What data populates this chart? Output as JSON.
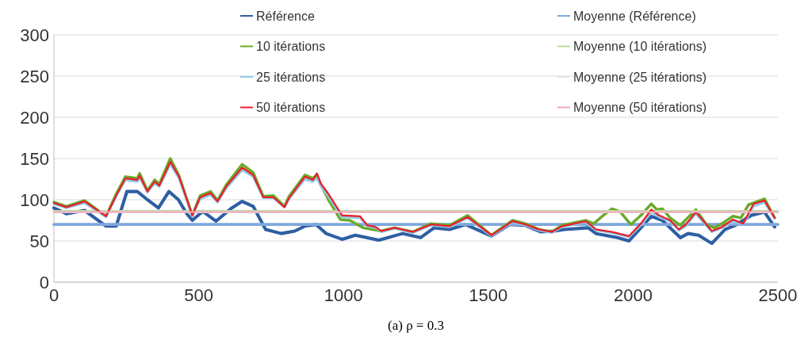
{
  "chart_data": {
    "type": "line",
    "xlim": [
      0,
      2500
    ],
    "xticks": [
      0,
      500,
      1000,
      1500,
      2000,
      2500
    ],
    "ylim": [
      0,
      300
    ],
    "yticks": [
      0,
      50,
      100,
      150,
      200,
      250,
      300
    ],
    "grid": "y",
    "legend": "top",
    "annotations": [
      "(a) ρ = 0.3"
    ],
    "series": [
      {
        "name": "Référence",
        "color": "#2e5fa3",
        "x": [
          0,
          43,
          106,
          180,
          215,
          252,
          288,
          323,
          361,
          397,
          430,
          459,
          478,
          514,
          560,
          614,
          650,
          688,
          731,
          785,
          832,
          867,
          905,
          940,
          995,
          1041,
          1122,
          1204,
          1266,
          1313,
          1366,
          1421,
          1511,
          1573,
          1628,
          1682,
          1728,
          1764,
          1845,
          1872,
          1946,
          1986,
          2027,
          2063,
          2101,
          2163,
          2190,
          2226,
          2272,
          2318,
          2353,
          2408,
          2454,
          2489
        ],
        "values": [
          90,
          83,
          87,
          68,
          68,
          110,
          110,
          100,
          90,
          110,
          100,
          83,
          75,
          86,
          74,
          90,
          98,
          92,
          64,
          59,
          62,
          68,
          70,
          59,
          52,
          57,
          51,
          59,
          54,
          66,
          64,
          70,
          56,
          70,
          69,
          61,
          62,
          64,
          66,
          59,
          54,
          50,
          66,
          80,
          75,
          54,
          59,
          57,
          47,
          64,
          69,
          81,
          85,
          67
        ]
      },
      {
        "name": "Moyenne (Référence)",
        "color": "#7fa8dc",
        "x": [
          0,
          2500
        ],
        "values": [
          70,
          70
        ]
      },
      {
        "name": "10 itérations",
        "color": "#6aaa2a",
        "x": [
          0,
          43,
          106,
          180,
          215,
          247,
          288,
          296,
          323,
          348,
          364,
          402,
          432,
          478,
          505,
          541,
          565,
          595,
          650,
          688,
          723,
          758,
          796,
          812,
          867,
          894,
          908,
          921,
          948,
          989,
          1022,
          1068,
          1130,
          1176,
          1239,
          1302,
          1366,
          1429,
          1511,
          1584,
          1628,
          1674,
          1720,
          1755,
          1837,
          1864,
          1897,
          1927,
          1954,
          1992,
          2027,
          2063,
          2082,
          2101,
          2128,
          2163,
          2217,
          2253,
          2280,
          2307,
          2345,
          2372,
          2399,
          2454,
          2489
        ],
        "values": [
          97,
          92,
          99,
          80,
          107,
          128,
          126,
          132,
          111,
          124,
          119,
          150,
          129,
          81,
          105,
          110,
          99,
          118,
          143,
          133,
          104,
          105,
          92,
          104,
          130,
          126,
          130,
          119,
          100,
          76,
          75,
          66,
          62,
          66,
          61,
          71,
          69,
          81,
          57,
          75,
          71,
          64,
          61,
          69,
          75,
          71,
          81,
          89,
          86,
          70,
          81,
          95,
          88,
          89,
          78,
          69,
          88,
          70,
          66,
          71,
          80,
          78,
          94,
          101,
          78
        ]
      },
      {
        "name": "Moyenne (10 itérations)",
        "color": "#b9dc93",
        "x": [
          0,
          2500
        ],
        "values": [
          86,
          86
        ]
      },
      {
        "name": "25 itérations",
        "color": "#8fcbea",
        "x": [
          0,
          43,
          106,
          180,
          215,
          247,
          288,
          296,
          323,
          348,
          364,
          402,
          432,
          478,
          505,
          541,
          565,
          595,
          650,
          688,
          723,
          758,
          796,
          812,
          867,
          894,
          908,
          921,
          948,
          995,
          1057,
          1082,
          1111,
          1130,
          1176,
          1239,
          1302,
          1366,
          1429,
          1511,
          1584,
          1628,
          1674,
          1720,
          1755,
          1837,
          1872,
          1927,
          1986,
          2027,
          2063,
          2090,
          2128,
          2158,
          2182,
          2217,
          2272,
          2307,
          2345,
          2380,
          2416,
          2454,
          2489
        ],
        "values": [
          95,
          90,
          96,
          79,
          104,
          124,
          122,
          127,
          109,
          120,
          116,
          143,
          126,
          80,
          101,
          106,
          97,
          114,
          136,
          128,
          102,
          102,
          91,
          101,
          125,
          122,
          126,
          117,
          104,
          79,
          78,
          68,
          66,
          61,
          65,
          60,
          69,
          67,
          78,
          56,
          73,
          69,
          63,
          60,
          67,
          73,
          63,
          60,
          55,
          69,
          85,
          79,
          74,
          63,
          68,
          83,
          61,
          66,
          74,
          70,
          92,
          97,
          77
        ]
      },
      {
        "name": "Moyenne (25 itérations)",
        "color": "#dde9f2",
        "x": [
          0,
          2500
        ],
        "values": [
          85,
          85
        ]
      },
      {
        "name": "50 itérations",
        "color": "#e8202a",
        "x": [
          0,
          43,
          106,
          180,
          215,
          247,
          288,
          296,
          323,
          348,
          364,
          402,
          432,
          478,
          505,
          541,
          565,
          595,
          650,
          688,
          723,
          758,
          796,
          812,
          867,
          894,
          908,
          921,
          948,
          995,
          1057,
          1082,
          1111,
          1130,
          1176,
          1239,
          1302,
          1366,
          1429,
          1511,
          1584,
          1628,
          1674,
          1720,
          1755,
          1837,
          1872,
          1927,
          1986,
          2027,
          2063,
          2090,
          2128,
          2158,
          2182,
          2217,
          2272,
          2307,
          2345,
          2380,
          2416,
          2454,
          2489
        ],
        "values": [
          96,
          91,
          98,
          80,
          105,
          126,
          124,
          129,
          110,
          122,
          117,
          146,
          128,
          81,
          103,
          108,
          98,
          116,
          139,
          130,
          103,
          103,
          91,
          102,
          128,
          124,
          132,
          120,
          107,
          81,
          80,
          69,
          67,
          62,
          66,
          61,
          70,
          68,
          79,
          57,
          74,
          70,
          64,
          61,
          68,
          74,
          64,
          61,
          56,
          71,
          88,
          81,
          75,
          64,
          70,
          85,
          62,
          67,
          76,
          71,
          95,
          99,
          78
        ]
      },
      {
        "name": "Moyenne (50 itérations)",
        "color": "#f2a6b6",
        "x": [
          0,
          2500
        ],
        "values": [
          85,
          85
        ]
      }
    ]
  }
}
